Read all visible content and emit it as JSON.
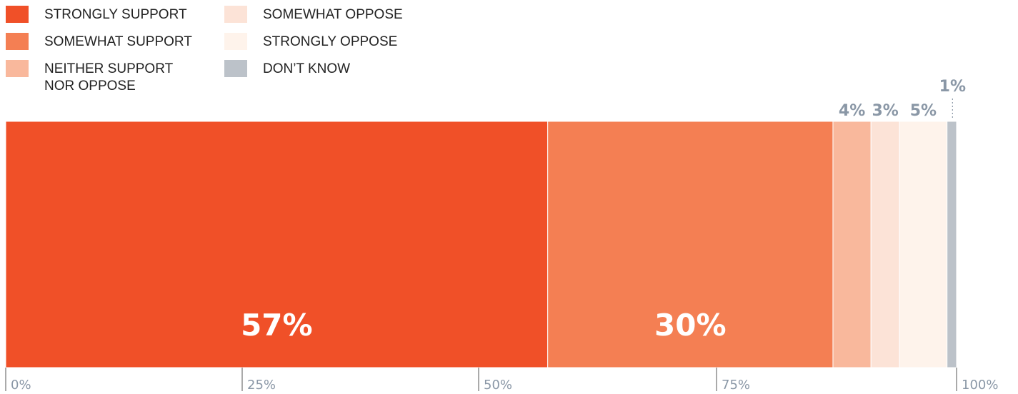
{
  "chart_data": {
    "type": "bar",
    "orientation": "horizontal-stacked",
    "legend_placement": "top-left",
    "grid": false,
    "xlim": [
      0,
      100
    ],
    "ticks": [
      "0%",
      "25%",
      "50%",
      "75%",
      "100%"
    ],
    "series": [
      {
        "name": "STRONGLY SUPPORT",
        "value": 57,
        "label": "57%",
        "color": "#F05028"
      },
      {
        "name": "SOMEWHAT SUPPORT",
        "value": 30,
        "label": "30%",
        "color": "#F47F53"
      },
      {
        "name": "NEITHER SUPPORT\nNOR OPPOSE",
        "value": 4,
        "label": "4%",
        "color": "#F9B89C"
      },
      {
        "name": "SOMEWHAT OPPOSE",
        "value": 3,
        "label": "3%",
        "color": "#FCE3D7"
      },
      {
        "name": "STRONGLY OPPOSE",
        "value": 5,
        "label": "5%",
        "color": "#FEF3EB"
      },
      {
        "name": "DON’T KNOW",
        "value": 1,
        "label": "1%",
        "color": "#BCC2C9"
      }
    ],
    "colors": {
      "inner_label": "#ffffff",
      "outer_label": "#8A97A6",
      "tick": "#8A97A6",
      "tick_line": "#555555"
    }
  }
}
